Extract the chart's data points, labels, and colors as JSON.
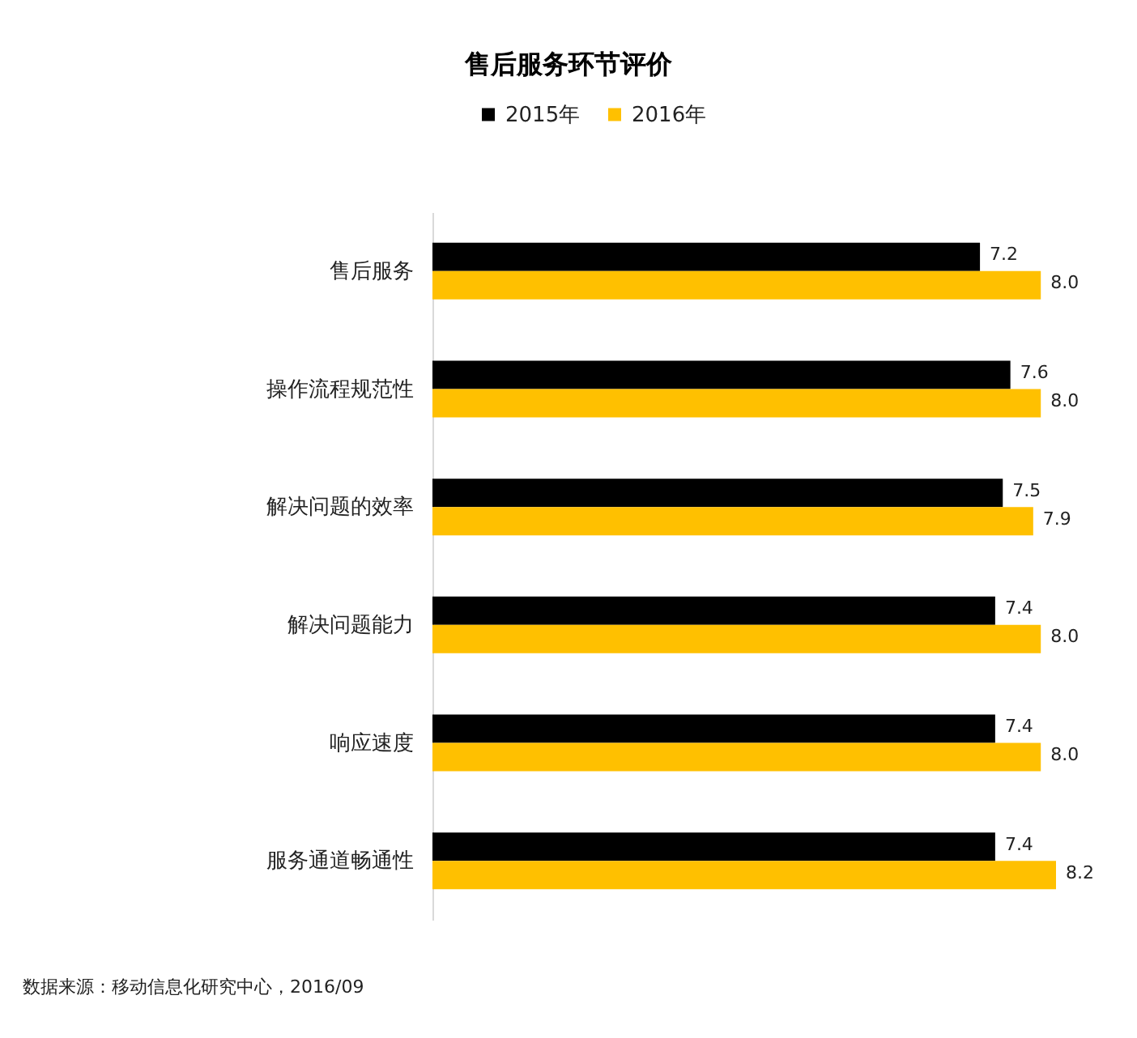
{
  "chart_data": {
    "type": "bar",
    "orientation": "horizontal",
    "title": "售后服务环节评价",
    "categories": [
      "售后服务",
      "操作流程规范性",
      "解决问题的效率",
      "解决问题能力",
      "响应速度",
      "服务通道畅通性"
    ],
    "series": [
      {
        "name": "2015年",
        "color": "#000000",
        "values": [
          7.2,
          7.6,
          7.5,
          7.4,
          7.4,
          7.4
        ],
        "value_labels": [
          "7.2",
          "7.6",
          "7.5",
          "7.4",
          "7.4",
          "7.4"
        ]
      },
      {
        "name": "2016年",
        "color": "#ffc000",
        "values": [
          8.0,
          8.0,
          7.9,
          8.0,
          8.0,
          8.2
        ],
        "value_labels": [
          "8.0",
          "8.0",
          "7.9",
          "8.0",
          "8.0",
          "8.2"
        ]
      }
    ],
    "legend": "top",
    "tick_labels": "y",
    "annotations": [
      "数据来源：移动信息化研究中心，2016/09"
    ]
  }
}
